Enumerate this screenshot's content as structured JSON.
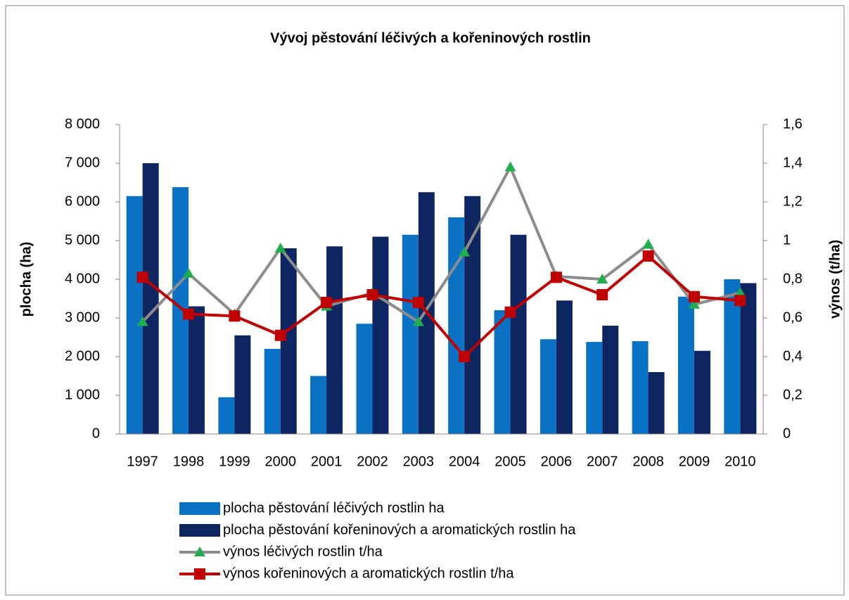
{
  "chart_data": {
    "type": "bar-line",
    "title": "Vývoj pěstování léčivých a kořeninových rostlin",
    "ylabel": "plocha (ha)",
    "y2label": "výnos (t/ha)",
    "categories": [
      "1997",
      "1998",
      "1999",
      "2000",
      "2001",
      "2002",
      "2003",
      "2004",
      "2005",
      "2006",
      "2007",
      "2008",
      "2009",
      "2010"
    ],
    "ylim": [
      0,
      8000
    ],
    "yticks": [
      0,
      {
        "value": 1000,
        "label": "1 000"
      },
      {
        "value": 2000,
        "label": "2 000"
      },
      {
        "value": 3000,
        "label": "3 000"
      },
      {
        "value": 4000,
        "label": "4 000"
      },
      {
        "value": 5000,
        "label": "5 000"
      },
      {
        "value": 6000,
        "label": "6 000"
      },
      {
        "value": 7000,
        "label": "7 000"
      },
      {
        "value": 8000,
        "label": "8 000"
      }
    ],
    "y2lim": [
      0,
      1.6
    ],
    "y2ticks": [
      0,
      {
        "value": 0.2,
        "label": "0,2"
      },
      {
        "value": 0.4,
        "label": "0,4"
      },
      {
        "value": 0.6,
        "label": "0,6"
      },
      {
        "value": 0.8,
        "label": "0,8"
      },
      1,
      {
        "value": 1.2,
        "label": "1,2"
      },
      {
        "value": 1.4,
        "label": "1,4"
      },
      {
        "value": 1.6,
        "label": "1,6"
      }
    ],
    "series": [
      {
        "name": "plocha pěstování léčivých rostlin ha",
        "kind": "bar",
        "color": "#0a72c4",
        "values": [
          6150,
          6380,
          950,
          2200,
          1500,
          2850,
          5150,
          5600,
          3200,
          2450,
          2380,
          2400,
          3550,
          4000
        ]
      },
      {
        "name": "plocha pěstování kořeninových a aromatických rostlin ha",
        "kind": "bar",
        "color": "#0d2560",
        "values": [
          7000,
          3300,
          2550,
          4800,
          4850,
          5100,
          6250,
          6150,
          5150,
          3450,
          2800,
          1600,
          2150,
          3900
        ]
      },
      {
        "name": "výnos léčivých rostlin t/ha",
        "kind": "line",
        "axis": "y2",
        "color": "#8c8c8c",
        "marker": "triangle",
        "marker_color": "#1fae4b",
        "values": [
          0.58,
          0.83,
          0.62,
          0.96,
          0.66,
          0.73,
          0.58,
          0.94,
          1.38,
          0.815,
          0.8,
          0.98,
          0.67,
          0.73
        ]
      },
      {
        "name": "výnos kořeninových a aromatických rostlin t/ha",
        "kind": "line",
        "axis": "y2",
        "color": "#c00000",
        "marker": "square",
        "marker_color": "#c00000",
        "values": [
          0.81,
          0.62,
          0.61,
          0.51,
          0.68,
          0.72,
          0.68,
          0.4,
          0.63,
          0.81,
          0.72,
          0.92,
          0.71,
          0.69
        ]
      }
    ]
  }
}
